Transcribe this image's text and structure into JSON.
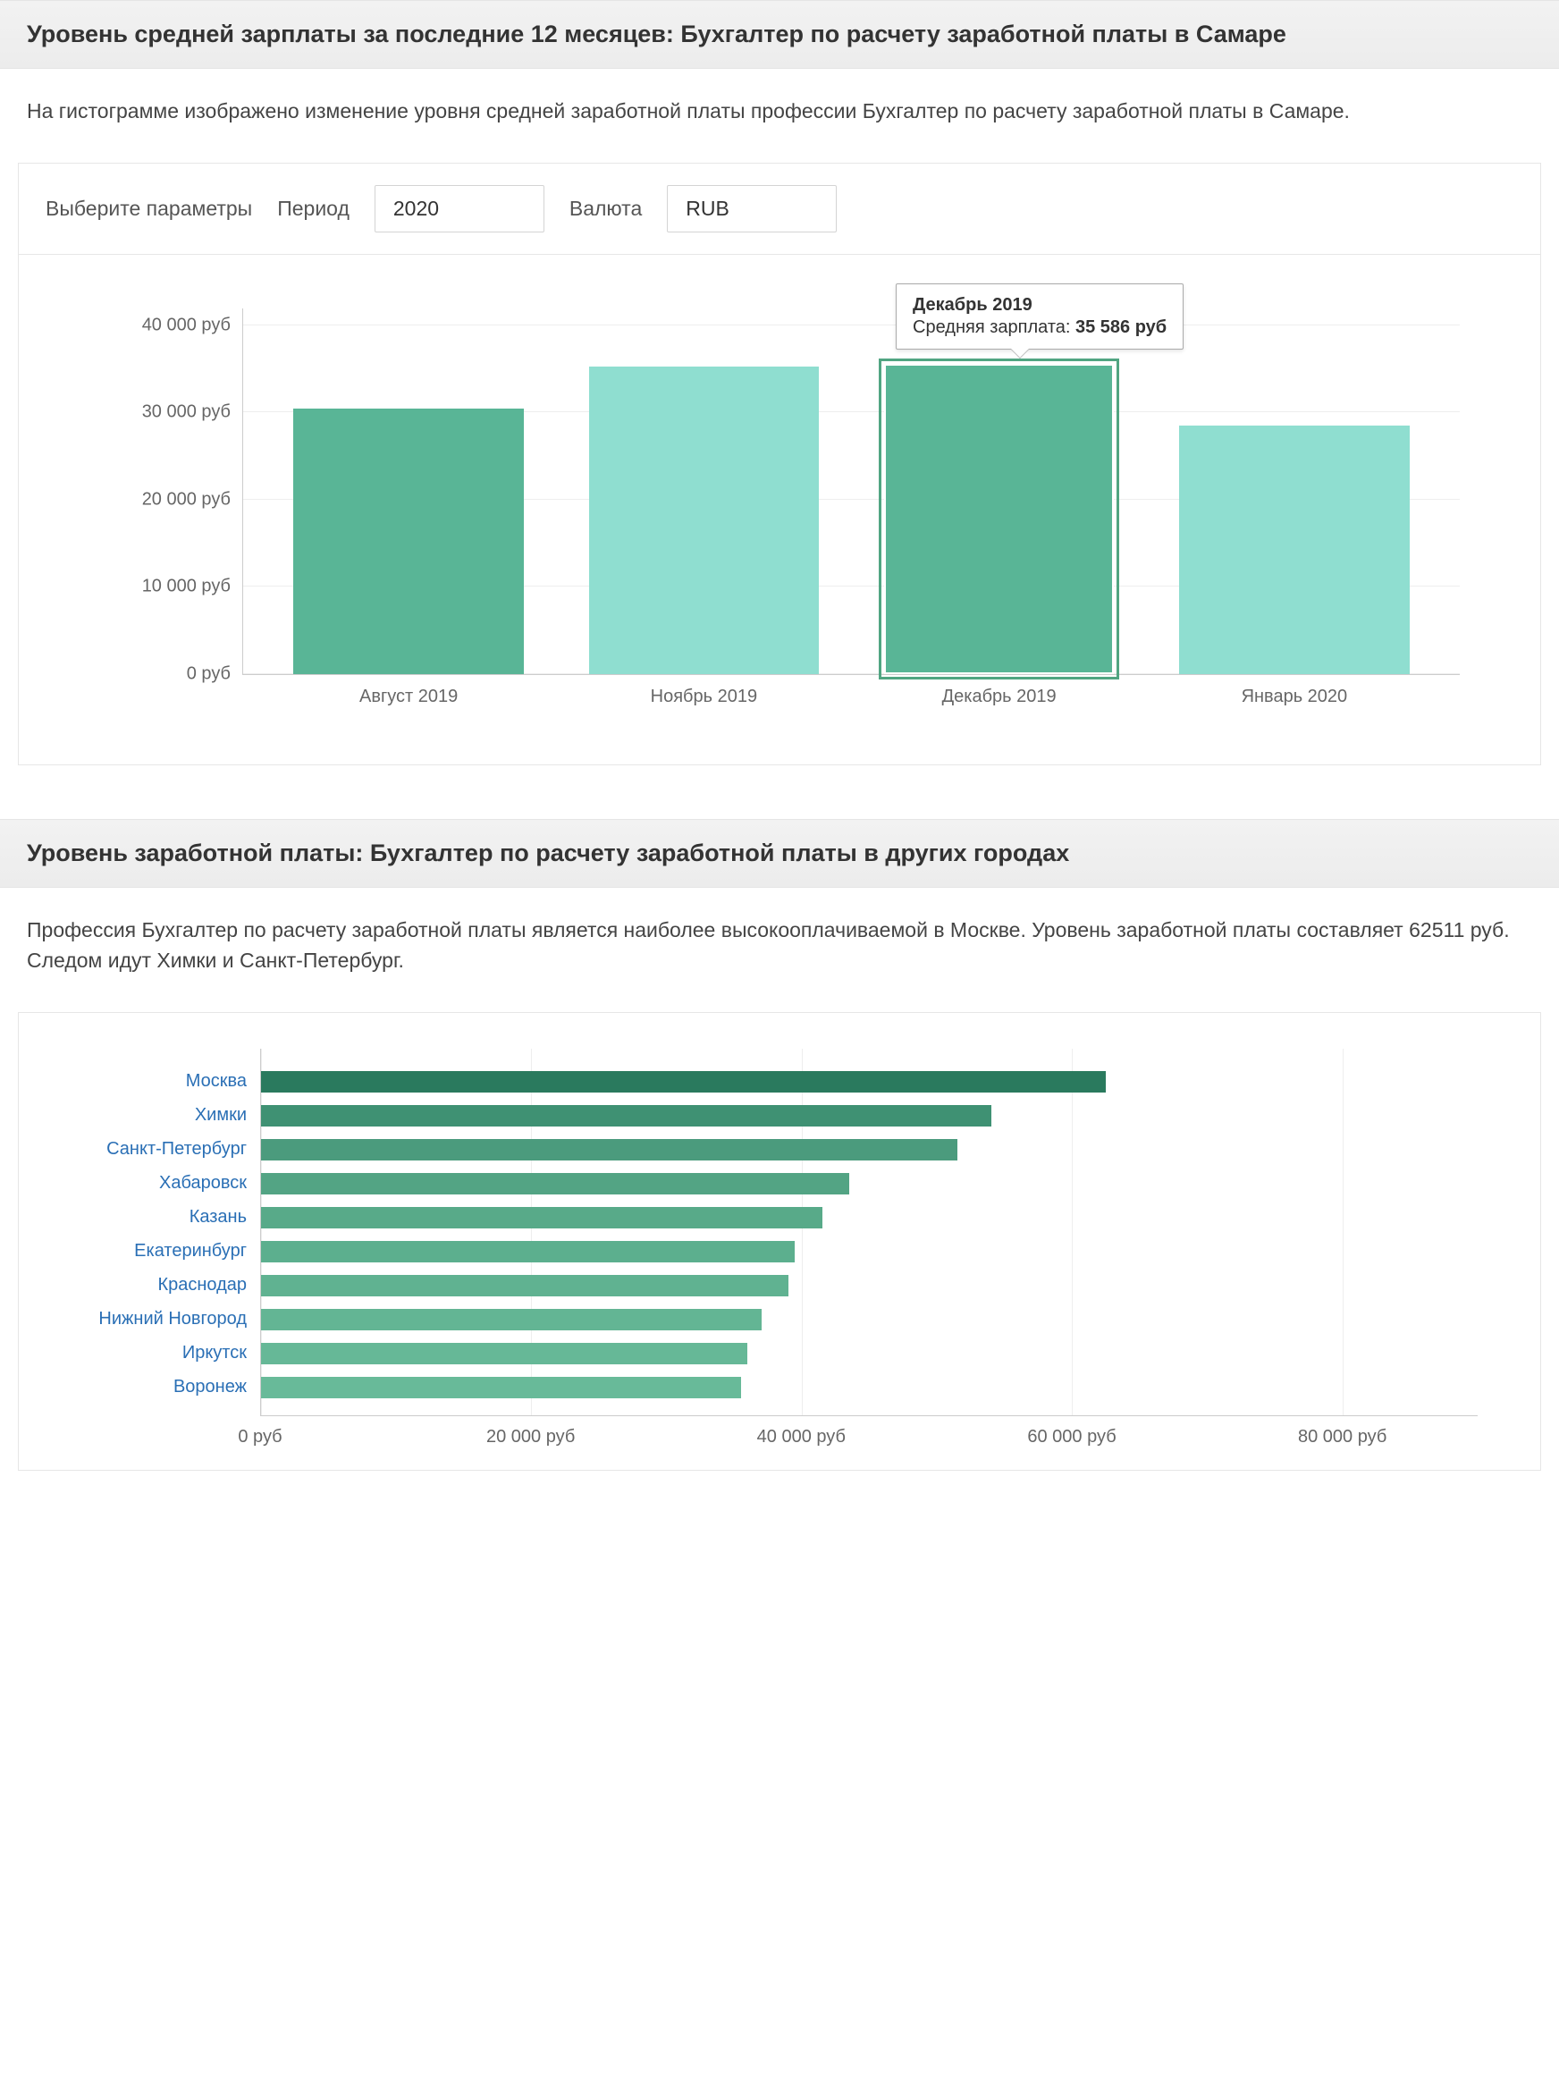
{
  "section1": {
    "title": "Уровень средней зарплаты за последние 12 месяцев: Бухгалтер по расчету заработной платы в Самаре",
    "description": "На гистограмме изображено изменение уровня средней заработной платы профессии Бухгалтер по расчету заработной платы в Самаре.",
    "controls": {
      "prompt": "Выберите параметры",
      "period_label": "Период",
      "period_value": "2020",
      "currency_label": "Валюта",
      "currency_value": "RUB"
    },
    "chart": {
      "type": "bar",
      "ymin": 0,
      "ymax": 42000,
      "yticks": [
        0,
        10000,
        20000,
        30000,
        40000
      ],
      "ytick_labels": [
        "0 руб",
        "10 000 руб",
        "20 000 руб",
        "30 000 руб",
        "40 000 руб"
      ],
      "bar_colors": [
        "#59b596",
        "#8fded0",
        "#59b596",
        "#8fded0"
      ],
      "categories": [
        "Август 2019",
        "Ноябрь 2019",
        "Декабрь 2019",
        "Январь 2020"
      ],
      "values": [
        30400,
        35300,
        35586,
        28500
      ],
      "highlight_index": 2,
      "background_color": "#ffffff",
      "grid_color": "#eeeeee",
      "axis_color": "#cccccc",
      "label_fontsize": 20,
      "label_color": "#666666",
      "highlight_outline_color": "#51a582"
    },
    "tooltip": {
      "title": "Декабрь 2019",
      "label": "Средняя зарплата: ",
      "value": "35 586 руб"
    }
  },
  "section2": {
    "title": "Уровень заработной платы: Бухгалтер по расчету заработной платы в других городах",
    "description": "Профессия Бухгалтер по расчету заработной платы является наиболее высокооплачиваемой в Москве. Уровень заработной платы составляет 62511 руб. Следом идут Химки и Санкт-Петербург.",
    "chart": {
      "type": "horizontal-bar",
      "xmin": 0,
      "xmax": 90000,
      "xticks": [
        0,
        20000,
        40000,
        60000,
        80000
      ],
      "xtick_labels": [
        "0 руб",
        "20 000 руб",
        "40 000 руб",
        "60 000 руб",
        "80 000 руб"
      ],
      "categories": [
        "Москва",
        "Химки",
        "Санкт-Петербург",
        "Хабаровск",
        "Казань",
        "Екатеринбург",
        "Краснодар",
        "Нижний Новгород",
        "Иркутск",
        "Воронеж"
      ],
      "values": [
        62511,
        54000,
        51500,
        43500,
        41500,
        39500,
        39000,
        37000,
        36000,
        35500
      ],
      "bar_colors": [
        "#2a7a5e",
        "#3f9173",
        "#4b9b7d",
        "#53a484",
        "#58aa89",
        "#5caf8e",
        "#60b291",
        "#63b594",
        "#66b897",
        "#68ba99"
      ],
      "background_color": "#ffffff",
      "grid_color": "#eeeeee",
      "axis_color": "#cccccc",
      "label_fontsize": 20,
      "link_color": "#2a6fb5"
    }
  }
}
